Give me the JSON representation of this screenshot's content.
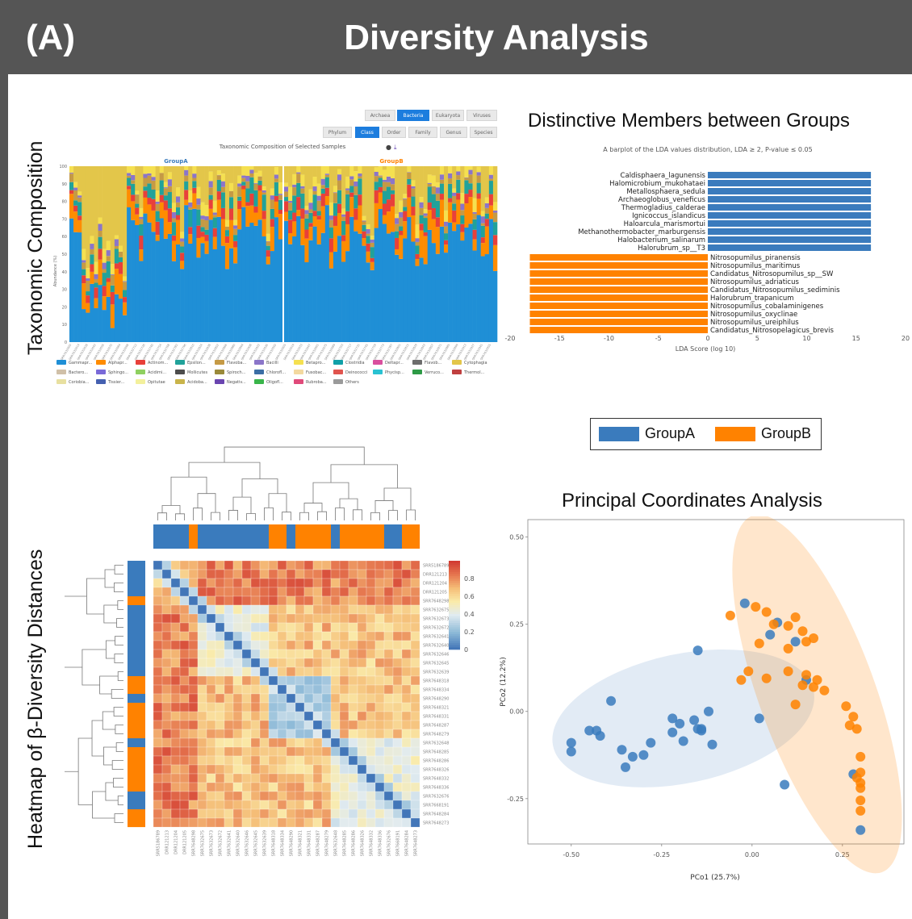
{
  "header": {
    "panel_label": "(A)",
    "title": "Diversity Analysis"
  },
  "left_labels": {
    "taxonomic": "Taxonomic Composition",
    "heatmap": "Heatmap of β-Diversity Distances"
  },
  "colors": {
    "groupA": "#3a7bbd",
    "groupB": "#ff8200",
    "header_bg": "#555555"
  },
  "taxo": {
    "kingdom_buttons": [
      "Archaea",
      "Bacteria",
      "Eukaryota",
      "Viruses"
    ],
    "kingdom_active": "Bacteria",
    "rank_buttons": [
      "Phylum",
      "Class",
      "Order",
      "Family",
      "Genus",
      "Species"
    ],
    "rank_active": "Class",
    "chart_title": "Taxonomic Composition of Selected Samples",
    "group_a": "GroupA",
    "group_b": "GroupB",
    "ylabel": "Abundance (%)",
    "yticks": [
      "0",
      "10",
      "20",
      "30",
      "40",
      "50",
      "60",
      "70",
      "80",
      "90",
      "100"
    ],
    "legend": [
      "Gammapr...",
      "Alphapr...",
      "Actinom...",
      "Epsilon...",
      "Flavoba...",
      "Bacilli",
      "Betapro...",
      "Clostridia",
      "Deltapr...",
      "Flavob...",
      "Cytophagia",
      "Bactero...",
      "Sphingo...",
      "Acidimi...",
      "Mollicutes",
      "Spiroch...",
      "Chlorofl...",
      "Fusobac...",
      "Deinococci",
      "Phycisp...",
      "Verruco...",
      "Thermol...",
      "Coriobia...",
      "Tissier...",
      "Opitutae",
      "Acidoba...",
      "Negativ...",
      "Oligofl...",
      "Rubroba...",
      "Others"
    ],
    "legend_colors": [
      "#1f8fd6",
      "#ff8c00",
      "#e8403a",
      "#21a29a",
      "#c59a45",
      "#8b75c9",
      "#f5e050",
      "#10a0a8",
      "#d94f9e",
      "#6d6d6d",
      "#e3c64a",
      "#d0c0a8",
      "#7a6ad8",
      "#8fd060",
      "#4d4d4d",
      "#9a8a3a",
      "#3b6ea5",
      "#f3d9a0",
      "#e0544e",
      "#29c2d2",
      "#2d9a46",
      "#c04040",
      "#e8e0a0",
      "#4560b0",
      "#f3f09c",
      "#c9b44a",
      "#6a45b0",
      "#39b54a",
      "#e04a7a",
      "#9a9a9a"
    ]
  },
  "lda": {
    "title": "Distinctive Members between Groups",
    "subtitle": "A barplot of the LDA values distribution, LDA ≥ 2, P-value ≤ 0.05",
    "xlabel": "LDA Score  (log 10)",
    "xticks": [
      "-20",
      "-15",
      "-10",
      "-5",
      "0",
      "5",
      "10",
      "15",
      "20"
    ]
  },
  "legend": {
    "groupA": "GroupA",
    "groupB": "GroupB"
  },
  "heatmap": {
    "colorbar_ticks": [
      "0.8",
      "0.6",
      "0.4",
      "0.2",
      "0"
    ],
    "row_labels": [
      "SRR5186789",
      "DRR121213",
      "DRR121204",
      "DRR121205",
      "SRR7648298",
      "SRR7632675",
      "SRR7632673",
      "SRR7632672",
      "SRR7632641",
      "SRR7632640",
      "SRR7632646",
      "SRR7632645",
      "SRR7632639",
      "SRR7648318",
      "SRR7648334",
      "SRR7648290",
      "SRR7648321",
      "SRR7648331",
      "SRR7648287",
      "SRR7648279",
      "SRR7632648",
      "SRR7648285",
      "SRR7648286",
      "SRR7648326",
      "SRR7648332",
      "SRR7648336",
      "SRR7632676",
      "SRR7668191",
      "SRR7648284",
      "SRR7648273"
    ]
  },
  "pcoa": {
    "title": "Principal Coordinates Analysis",
    "xlabel": "PCo1 (25.7%)",
    "ylabel": "PCo2 (12.2%)",
    "xticks": [
      "-0.50",
      "-0.25",
      "0.00",
      "0.25"
    ],
    "yticks": [
      "0.50",
      "0.25",
      "0.00",
      "-0.25"
    ]
  },
  "chart_data": [
    {
      "type": "bar",
      "title": "Distinctive Members between Groups",
      "xlabel": "LDA Score  (log 10)",
      "xlim": [
        -20,
        20
      ],
      "categories": [
        "Caldisphaera_lagunensis",
        "Halomicrobium_mukohataei",
        "Metallosphaera_sedula",
        "Archaeoglobus_veneficus",
        "Thermogladius_calderae",
        "Ignicoccus_islandicus",
        "Haloarcula_marismortui",
        "Methanothermobacter_marburgensis",
        "Halobacterium_salinarum",
        "Halorubrum_sp__T3",
        "Nitrosopumilus_piranensis",
        "Nitrosopumilus_maritimus",
        "Candidatus_Nitrosopumilus_sp__SW",
        "Nitrosopumilus_adriaticus",
        "Candidatus_Nitrosopumilus_sediminis",
        "Halorubrum_trapanicum",
        "Nitrosopumilus_cobalaminigenes",
        "Nitrosopumilus_oxyclinae",
        "Nitrosopumilus_ureiphilus",
        "Candidatus_Nitrosopelagicus_brevis"
      ],
      "values": [
        16.5,
        16.5,
        16.5,
        16.5,
        16.5,
        16.5,
        16.5,
        16.5,
        16.5,
        16.5,
        -18,
        -18,
        -18,
        -18,
        -18,
        -18,
        -18,
        -18,
        -18,
        -18
      ],
      "series": [
        {
          "name": "GroupA",
          "range": [
            0,
            9
          ]
        },
        {
          "name": "GroupB",
          "range": [
            10,
            19
          ]
        }
      ]
    },
    {
      "type": "scatter",
      "title": "Principal Coordinates Analysis",
      "xlabel": "PCo1 (25.7%)",
      "ylabel": "PCo2 (12.2%)",
      "xlim": [
        -0.62,
        0.42
      ],
      "ylim": [
        -0.38,
        0.55
      ],
      "series": [
        {
          "name": "GroupA",
          "points": [
            [
              -0.5,
              -0.09
            ],
            [
              -0.5,
              -0.115
            ],
            [
              -0.45,
              -0.055
            ],
            [
              -0.43,
              -0.055
            ],
            [
              -0.42,
              -0.07
            ],
            [
              -0.39,
              0.03
            ],
            [
              -0.36,
              -0.11
            ],
            [
              -0.35,
              -0.16
            ],
            [
              -0.33,
              -0.13
            ],
            [
              -0.3,
              -0.125
            ],
            [
              -0.28,
              -0.09
            ],
            [
              -0.22,
              -0.02
            ],
            [
              -0.22,
              -0.06
            ],
            [
              -0.2,
              -0.035
            ],
            [
              -0.19,
              -0.085
            ],
            [
              -0.16,
              -0.025
            ],
            [
              -0.15,
              -0.05
            ],
            [
              -0.14,
              -0.05
            ],
            [
              -0.14,
              -0.055
            ],
            [
              -0.12,
              0
            ],
            [
              -0.11,
              -0.095
            ],
            [
              -0.15,
              0.175
            ],
            [
              -0.02,
              0.31
            ],
            [
              0.02,
              -0.02
            ],
            [
              0.05,
              0.22
            ],
            [
              0.07,
              0.255
            ],
            [
              0.12,
              0.2
            ],
            [
              0.15,
              0.09
            ],
            [
              0.09,
              -0.21
            ],
            [
              0.28,
              -0.18
            ],
            [
              0.3,
              -0.34
            ]
          ]
        },
        {
          "name": "GroupB",
          "points": [
            [
              -0.06,
              0.275
            ],
            [
              0.01,
              0.3
            ],
            [
              0.04,
              0.285
            ],
            [
              0.06,
              0.25
            ],
            [
              0.1,
              0.245
            ],
            [
              0.12,
              0.27
            ],
            [
              0.14,
              0.23
            ],
            [
              0.17,
              0.21
            ],
            [
              0.1,
              0.18
            ],
            [
              0.02,
              0.195
            ],
            [
              0.15,
              0.2
            ],
            [
              -0.03,
              0.09
            ],
            [
              -0.01,
              0.115
            ],
            [
              0.04,
              0.095
            ],
            [
              0.1,
              0.115
            ],
            [
              0.12,
              0.02
            ],
            [
              0.15,
              0.105
            ],
            [
              0.17,
              0.07
            ],
            [
              0.18,
              0.09
            ],
            [
              0.2,
              0.06
            ],
            [
              0.14,
              0.075
            ],
            [
              0.26,
              0.015
            ],
            [
              0.28,
              -0.015
            ],
            [
              0.27,
              -0.04
            ],
            [
              0.29,
              -0.05
            ],
            [
              0.3,
              -0.13
            ],
            [
              0.3,
              -0.175
            ],
            [
              0.29,
              -0.19
            ],
            [
              0.3,
              -0.205
            ],
            [
              0.3,
              -0.22
            ],
            [
              0.3,
              -0.255
            ],
            [
              0.3,
              -0.285
            ]
          ]
        }
      ]
    }
  ]
}
